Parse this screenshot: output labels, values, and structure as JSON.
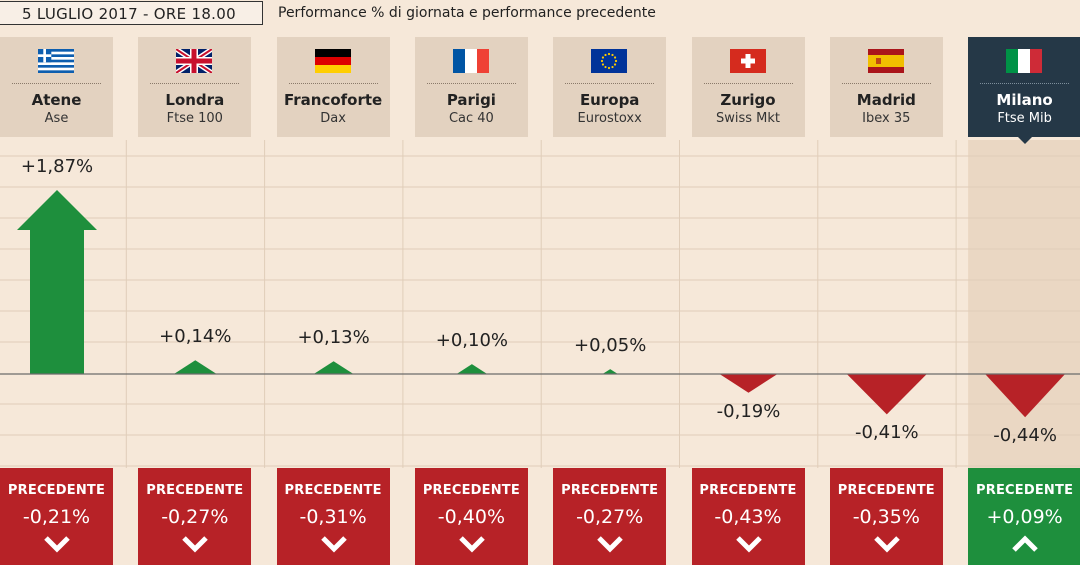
{
  "header": {
    "date": "5 LUGLIO 2017 - ORE 18.00",
    "subtitle": "Performance % di giornata e performance precedente"
  },
  "prev_label": "PRECEDENTE",
  "colors": {
    "background": "#f6e8d9",
    "card": "#e3d2c0",
    "highlight_card": "#253847",
    "up": "#1e8f3d",
    "down": "#b72227"
  },
  "chart_data": {
    "type": "bar",
    "categories": [
      "Atene",
      "Londra",
      "Francoforte",
      "Parigi",
      "Europa",
      "Zurigo",
      "Madrid",
      "Milano"
    ],
    "indices": [
      "Ase",
      "Ftse 100",
      "Dax",
      "Cac 40",
      "Eurostoxx",
      "Swiss Mkt",
      "Ibex 35",
      "Ftse Mib"
    ],
    "flags": [
      "greece-flag",
      "uk-flag",
      "germany-flag",
      "france-flag",
      "eu-flag",
      "switzerland-flag",
      "spain-flag",
      "italy-flag"
    ],
    "values": [
      1.87,
      0.14,
      0.13,
      0.1,
      0.05,
      -0.19,
      -0.41,
      -0.44
    ],
    "value_labels": [
      "+1,87%",
      "+0,14%",
      "+0,13%",
      "+0,10%",
      "+0,05%",
      "-0,19%",
      "-0,41%",
      "-0,44%"
    ],
    "previous_values": [
      -0.21,
      -0.27,
      -0.31,
      -0.4,
      -0.27,
      -0.43,
      -0.35,
      0.09
    ],
    "previous_labels": [
      "-0,21%",
      "-0,27%",
      "-0,31%",
      "-0,40%",
      "-0,27%",
      "-0,43%",
      "-0,35%",
      "+0,09%"
    ],
    "highlight": "Milano",
    "ylim": [
      -0.5,
      2.0
    ],
    "grid": true
  }
}
